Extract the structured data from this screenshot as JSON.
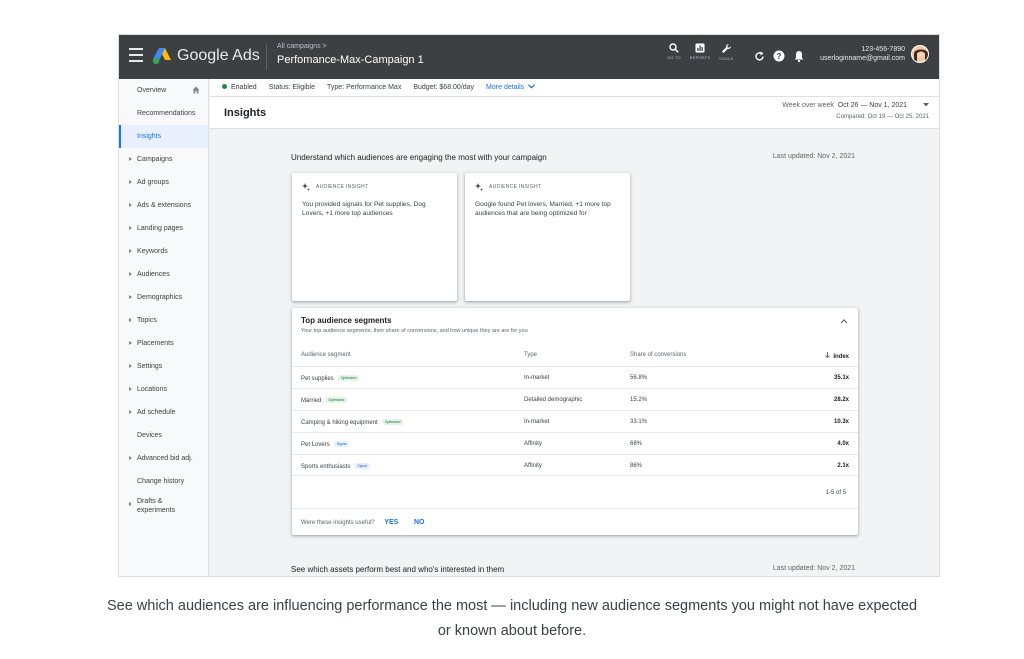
{
  "topbar": {
    "brand": "Google Ads",
    "breadcrumb": "All campaigns >",
    "campaign_title": "Perfomance-Max-Campaign 1",
    "tools": [
      {
        "icon": "search-icon",
        "label": "GO TO"
      },
      {
        "icon": "reports-icon",
        "label": "REPORTS"
      },
      {
        "icon": "wrench-icon",
        "label": "TOOLS"
      }
    ],
    "account_phone": "123-456-7890",
    "account_email": "userloginname@gmail.com"
  },
  "sidebar": {
    "items": [
      {
        "label": "Overview",
        "expandable": false
      },
      {
        "label": "Recommendations",
        "expandable": false
      },
      {
        "label": "Insights",
        "expandable": false,
        "active": true
      },
      {
        "label": "Campaigns",
        "expandable": true
      },
      {
        "label": "Ad groups",
        "expandable": true
      },
      {
        "label": "Ads & extensions",
        "expandable": true
      },
      {
        "label": "Landing pages",
        "expandable": true
      },
      {
        "label": "Keywords",
        "expandable": true
      },
      {
        "label": "Audiences",
        "expandable": true
      },
      {
        "label": "Demographics",
        "expandable": true
      },
      {
        "label": "Topics",
        "expandable": true
      },
      {
        "label": "Placements",
        "expandable": true
      },
      {
        "label": "Settings",
        "expandable": true
      },
      {
        "label": "Locations",
        "expandable": true
      },
      {
        "label": "Ad schedule",
        "expandable": true
      },
      {
        "label": "Devices",
        "expandable": false
      },
      {
        "label": "Advanced bid adj.",
        "expandable": true
      },
      {
        "label": "Change history",
        "expandable": false
      },
      {
        "label": "Drafts & experiments",
        "expandable": true
      }
    ]
  },
  "statusbar": {
    "enabled": "Enabled",
    "status": "Status: Eligible",
    "type": "Type: Performance Max",
    "budget": "Budget: $68.00/day",
    "more_details": "More details"
  },
  "header": {
    "title": "Insights",
    "period_label": "Week over week",
    "period_value": "Oct 26 — Nov 1, 2021",
    "compared": "Compared: Oct 19 — Oct 25, 2021"
  },
  "audience_section": {
    "title": "Understand which audiences are engaging the most with your campaign",
    "last_updated": "Last updated: Nov 2, 2021"
  },
  "insight_cards": [
    {
      "header": "AUDIENCE INSIGHT",
      "text": "You provided signals for Pet supplies, Dog Lovers, +1 more top audiences"
    },
    {
      "header": "AUDIENCE INSIGHT",
      "text": "Google found Pet lovers, Married, +1 more top audiences that are being optimized for"
    }
  ],
  "segments": {
    "title": "Top audience segments",
    "subtitle": "Your top audience segments, their share of conversions, and how unique they are are for you",
    "columns": [
      "Audience segment",
      "Type",
      "Share of conversions",
      "Index"
    ],
    "rows": [
      {
        "segment": "Pet supplies",
        "tag": "Optimized",
        "tag_kind": "opt",
        "type": "In-market",
        "share": "56.8%",
        "index": "35.1x"
      },
      {
        "segment": "Married",
        "tag": "Optimized",
        "tag_kind": "opt",
        "type": "Detailed demographic",
        "share": "15.2%",
        "index": "28.2x"
      },
      {
        "segment": "Camping & hiking equipment",
        "tag": "Optimized",
        "tag_kind": "opt",
        "type": "In-market",
        "share": "33.1%",
        "index": "10.3x"
      },
      {
        "segment": "Pet Lovers",
        "tag": "Signal",
        "tag_kind": "sig",
        "type": "Affinity",
        "share": "68%",
        "index": "4.0x"
      },
      {
        "segment": "Sports enthusiasts",
        "tag": "Signal",
        "tag_kind": "sig",
        "type": "Affinity",
        "share": "86%",
        "index": "2.1x"
      }
    ],
    "pagination": "1-5 of 5",
    "feedback_question": "Were these insights useful?",
    "yes": "YES",
    "no": "NO"
  },
  "assets_section": {
    "title": "See which assets perform best and who's interested in them",
    "last_updated": "Last updated: Nov 2, 2021"
  },
  "caption": "See which audiences are influencing performance the most — including new audience segments you might not have expected or known about before.",
  "colors": {
    "accent": "#1a73e8",
    "topbar": "#3c4043",
    "enabled": "#1e8e3e"
  }
}
